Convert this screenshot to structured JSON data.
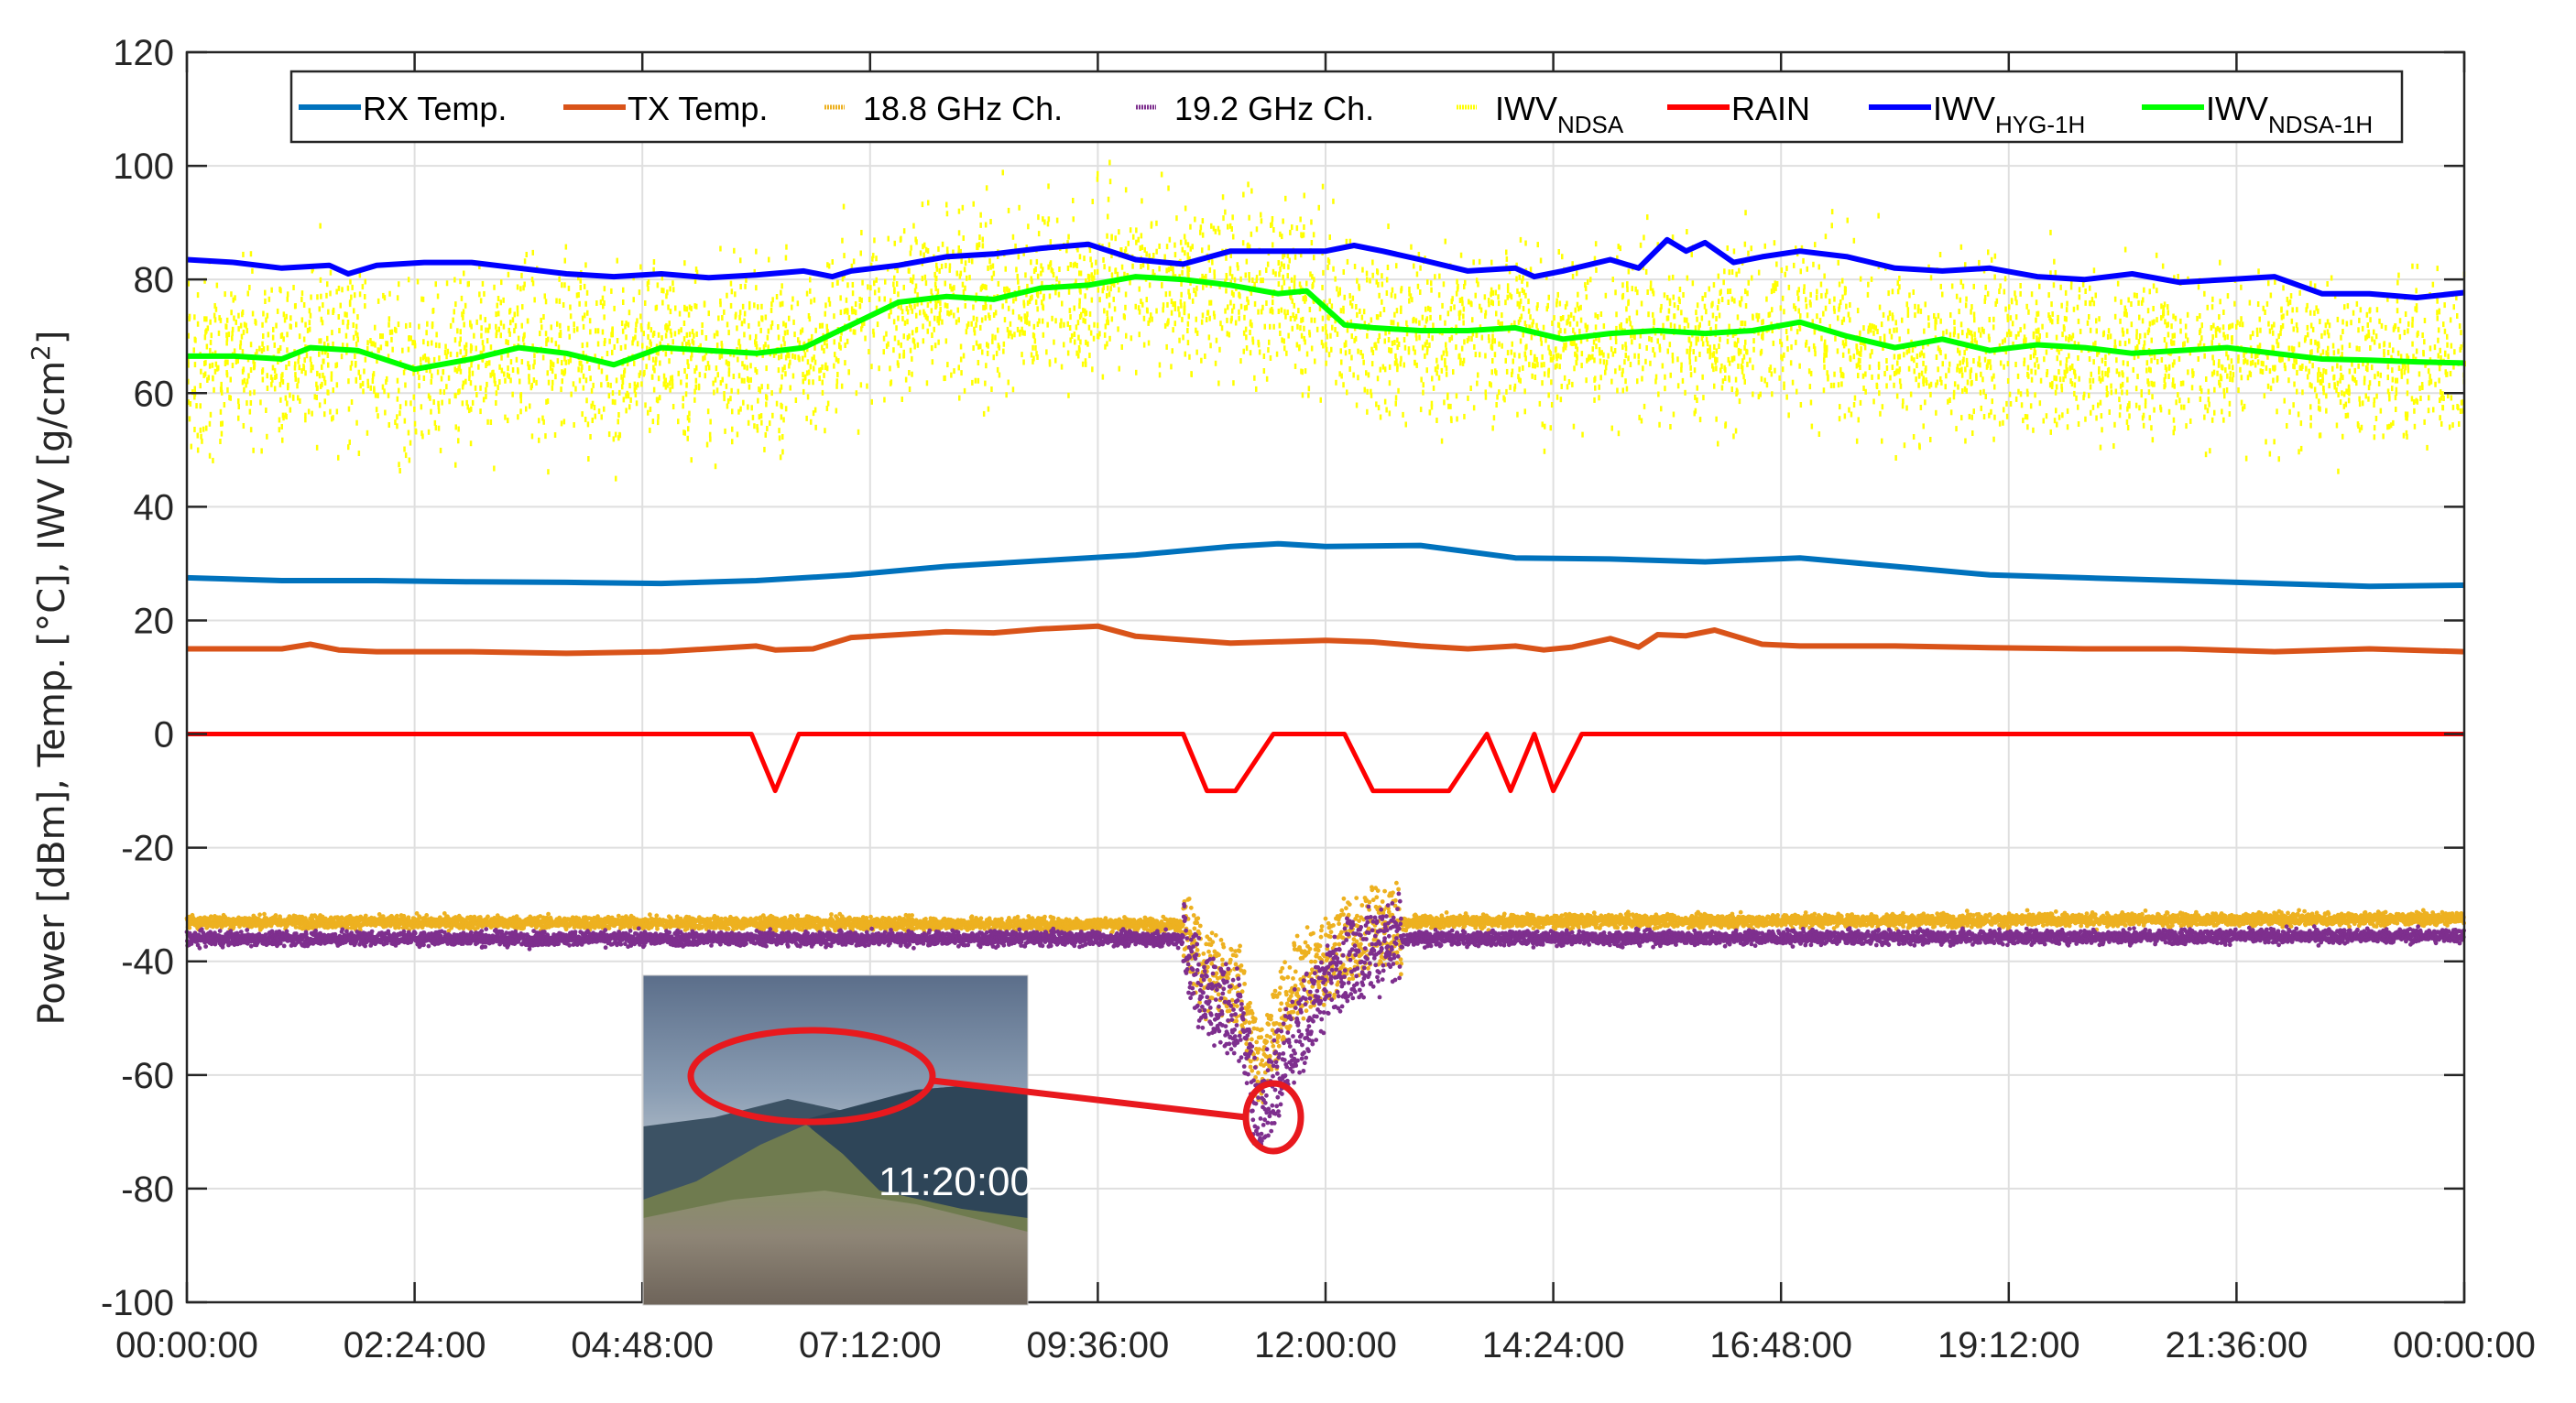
{
  "chart_data": {
    "type": "line",
    "title": "",
    "xlabel": "",
    "ylabel": "Power [dBm], Temp. [°C], IWV [g/cm²]",
    "ylabel_parts": {
      "main": "Power [dBm], Temp. [°C], IWV [g/cm",
      "sup": "2",
      "end": "]"
    },
    "ylim": [
      -100,
      120
    ],
    "xlim_hours": [
      0,
      24
    ],
    "grid": true,
    "yticks": [
      120,
      100,
      80,
      60,
      40,
      20,
      0,
      -20,
      -40,
      -60,
      -80,
      -100
    ],
    "xticks": [
      "00:00:00",
      "02:24:00",
      "04:48:00",
      "07:12:00",
      "09:36:00",
      "12:00:00",
      "14:24:00",
      "16:48:00",
      "19:12:00",
      "21:36:00",
      "00:00:00"
    ],
    "legend_position": "top inside",
    "legend": [
      {
        "key": "rx",
        "label": "RX Temp.",
        "sub": "",
        "color": "#0072BD",
        "style": "line"
      },
      {
        "key": "tx",
        "label": "TX Temp.",
        "sub": "",
        "color": "#D95319",
        "style": "line"
      },
      {
        "key": "ch188",
        "label": "18.8 GHz Ch.",
        "sub": "",
        "color": "#EDB120",
        "style": "dots"
      },
      {
        "key": "ch192",
        "label": "19.2 GHz Ch.",
        "sub": "",
        "color": "#7E2F8E",
        "style": "dots"
      },
      {
        "key": "iwv_ndsa",
        "label": "IWV",
        "sub": "NDSA",
        "color": "#FFFF00",
        "style": "dots"
      },
      {
        "key": "rain",
        "label": "RAIN",
        "sub": "",
        "color": "#FF0000",
        "style": "line"
      },
      {
        "key": "iwv_hyg",
        "label": "IWV",
        "sub": "HYG-1H",
        "color": "#0000FF",
        "style": "line"
      },
      {
        "key": "iwv_ndsa1h",
        "label": "IWV",
        "sub": "NDSA-1H",
        "color": "#00FF00",
        "style": "line"
      }
    ],
    "series": [
      {
        "name": "RX Temp.",
        "x_hours": [
          0,
          1,
          2,
          3,
          4,
          5,
          6,
          7,
          8,
          9,
          10,
          11,
          11.5,
          12,
          13,
          14,
          15,
          16,
          17,
          18,
          19,
          20,
          21,
          22,
          23,
          24
        ],
        "values": [
          27.5,
          27,
          27,
          26.8,
          26.7,
          26.5,
          27,
          28,
          29.5,
          30.5,
          31.5,
          33,
          33.5,
          33,
          33.2,
          31,
          30.8,
          30.3,
          31,
          29.5,
          28,
          27.5,
          27,
          26.5,
          26,
          26.2
        ]
      },
      {
        "name": "TX Temp.",
        "x_hours": [
          0,
          1,
          1.3,
          1.6,
          2,
          3,
          4,
          5,
          6,
          6.2,
          6.6,
          7,
          8,
          8.5,
          9,
          9.6,
          10,
          11,
          12,
          12.5,
          13,
          13.5,
          14,
          14.3,
          14.6,
          15,
          15.3,
          15.5,
          15.8,
          16.1,
          16.6,
          17,
          18,
          19,
          20,
          21,
          22,
          23,
          24
        ],
        "values": [
          15,
          15,
          15.8,
          14.8,
          14.5,
          14.5,
          14.2,
          14.5,
          15.5,
          14.8,
          15,
          17,
          18,
          17.8,
          18.5,
          19,
          17.2,
          16,
          16.5,
          16.2,
          15.5,
          15,
          15.5,
          14.8,
          15.3,
          16.8,
          15.3,
          17.5,
          17.3,
          18.3,
          15.8,
          15.5,
          15.5,
          15.2,
          15,
          15,
          14.5,
          15,
          14.5
        ]
      },
      {
        "name": "RAIN",
        "x_hours": [
          0,
          5.95,
          6.2,
          6.45,
          10.5,
          10.75,
          11.05,
          11.45,
          12.2,
          12.5,
          13.3,
          13.7,
          13.95,
          14.2,
          14.4,
          14.7,
          24
        ],
        "values": [
          0,
          0,
          -10,
          0,
          0,
          -10,
          -10,
          0,
          0,
          -10,
          -10,
          0,
          -10,
          0,
          -10,
          0,
          0
        ]
      },
      {
        "name": "IWV HYG-1H",
        "x_hours": [
          0,
          0.5,
          1,
          1.5,
          1.7,
          2,
          2.5,
          3,
          3.5,
          4,
          4.5,
          5,
          5.5,
          6,
          6.5,
          6.8,
          7,
          7.5,
          8,
          8.5,
          9,
          9.5,
          10,
          10.5,
          11,
          11.5,
          12,
          12.3,
          12.6,
          13,
          13.5,
          14,
          14.2,
          14.5,
          15,
          15.3,
          15.6,
          15.8,
          16,
          16.3,
          16.6,
          17,
          17.5,
          18,
          18.5,
          19,
          19.5,
          20,
          20.5,
          21,
          21.5,
          22,
          22.5,
          23,
          23.5,
          24
        ],
        "values": [
          83.5,
          83,
          82,
          82.5,
          81,
          82.5,
          83,
          83,
          82,
          81,
          80.5,
          81,
          80.3,
          80.8,
          81.5,
          80.5,
          81.5,
          82.5,
          84,
          84.5,
          85.5,
          86.2,
          83.5,
          82.7,
          85,
          85,
          85,
          86,
          85,
          83.5,
          81.5,
          82,
          80.5,
          81.5,
          83.5,
          82,
          87,
          85,
          86.5,
          83,
          84,
          85,
          84,
          82,
          81.5,
          82,
          80.5,
          80,
          81,
          79.5,
          80,
          80.5,
          77.5,
          77.5,
          76.8,
          77.7
        ]
      },
      {
        "name": "IWV NDSA-1H",
        "x_hours": [
          0,
          0.5,
          1,
          1.3,
          1.8,
          2.4,
          3,
          3.5,
          4,
          4.5,
          5,
          5.5,
          6,
          6.5,
          7,
          7.5,
          8,
          8.5,
          9,
          9.5,
          10,
          10.5,
          11,
          11.5,
          11.8,
          12.2,
          12.5,
          13,
          13.5,
          14,
          14.5,
          15,
          15.5,
          16,
          16.5,
          17,
          17.5,
          18,
          18.5,
          19,
          19.5,
          20,
          20.5,
          21,
          21.5,
          22,
          22.5,
          23,
          23.5,
          24
        ],
        "values": [
          66.5,
          66.5,
          66,
          68,
          67.5,
          64.2,
          66,
          68,
          67,
          65,
          68,
          67.5,
          67,
          68,
          72,
          76,
          77,
          76.5,
          78.5,
          79,
          80.5,
          80,
          79,
          77.5,
          78,
          72,
          71.5,
          71,
          71,
          71.5,
          69.5,
          70.5,
          71,
          70.5,
          71,
          72.5,
          70,
          68,
          69.5,
          67.5,
          68.5,
          68,
          67,
          67.5,
          68,
          67,
          66,
          65.8,
          65.5,
          65.3
        ]
      },
      {
        "name": "18.8 GHz Ch.",
        "x_hours": [
          0,
          10.5,
          10.7,
          11.1,
          11.3,
          11.6,
          12.2,
          12.6,
          13,
          24
        ],
        "values": [
          -33,
          -33.5,
          -41,
          -45,
          -60,
          -45,
          -37,
          -34,
          -33,
          -32.5
        ]
      },
      {
        "name": "19.2 GHz Ch.",
        "x_hours": [
          0,
          10.5,
          10.7,
          11.1,
          11.3,
          11.6,
          12.2,
          12.6,
          13,
          24
        ],
        "values": [
          -36,
          -36,
          -46,
          -50,
          -68,
          -55,
          -40,
          -37,
          -36,
          -35.5
        ]
      },
      {
        "name": "IWV NDSA",
        "type": "scatter",
        "x_hours_range": [
          0,
          24
        ],
        "mean_approx": "follows IWV NDSA-1H",
        "spread": [
          42,
          103
        ]
      }
    ],
    "annotations": [
      {
        "type": "inset-photo",
        "label": "11:20:00",
        "points_to": {
          "x_hours": 11.33,
          "value": -66
        }
      }
    ]
  }
}
